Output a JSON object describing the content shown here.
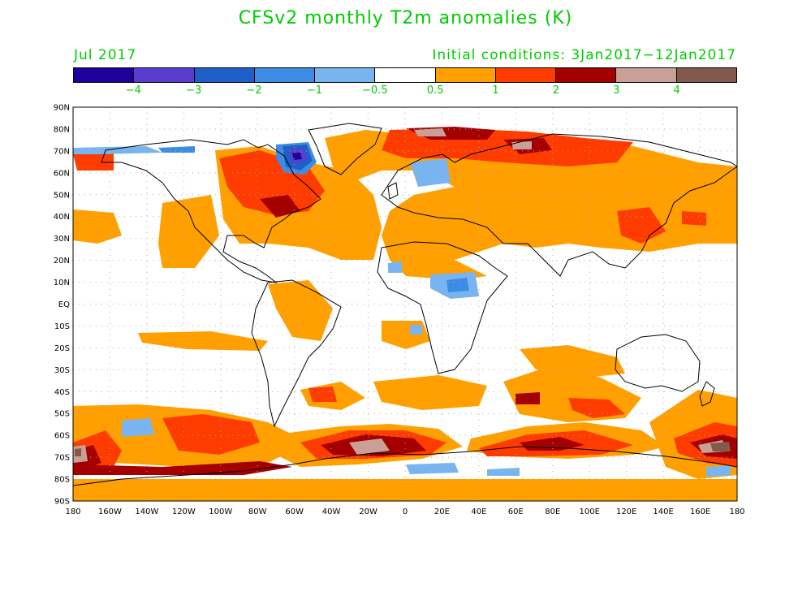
{
  "title": "CFSv2 monthly T2m anomalies (K)",
  "valid_month": "Jul 2017",
  "initial_conditions": "Initial conditions: 3Jan2017−12Jan2017",
  "colors": {
    "title_text": "#00cc00",
    "land_outline": "#000000",
    "grid": "#aaaaaa"
  },
  "colorbar": {
    "colors": [
      "#1e009c",
      "#5a3ccf",
      "#1e5fc8",
      "#3c8ce6",
      "#78b4f0",
      "#ffffff",
      "#ffa000",
      "#ff3c00",
      "#a50000",
      "#c8a096",
      "#82594c"
    ],
    "labels": [
      "−4",
      "−3",
      "−2",
      "−1",
      "−0.5",
      "0.5",
      "1",
      "2",
      "3",
      "4"
    ]
  },
  "lat_labels": [
    "90N",
    "80N",
    "70N",
    "60N",
    "50N",
    "40N",
    "30N",
    "20N",
    "10N",
    "EQ",
    "10S",
    "20S",
    "30S",
    "40S",
    "50S",
    "60S",
    "70S",
    "80S",
    "90S"
  ],
  "lon_labels": [
    "180",
    "160W",
    "140W",
    "120W",
    "100W",
    "80W",
    "60W",
    "40W",
    "20W",
    "0",
    "20E",
    "40E",
    "60E",
    "80E",
    "100E",
    "120E",
    "140E",
    "160E",
    "180"
  ]
}
